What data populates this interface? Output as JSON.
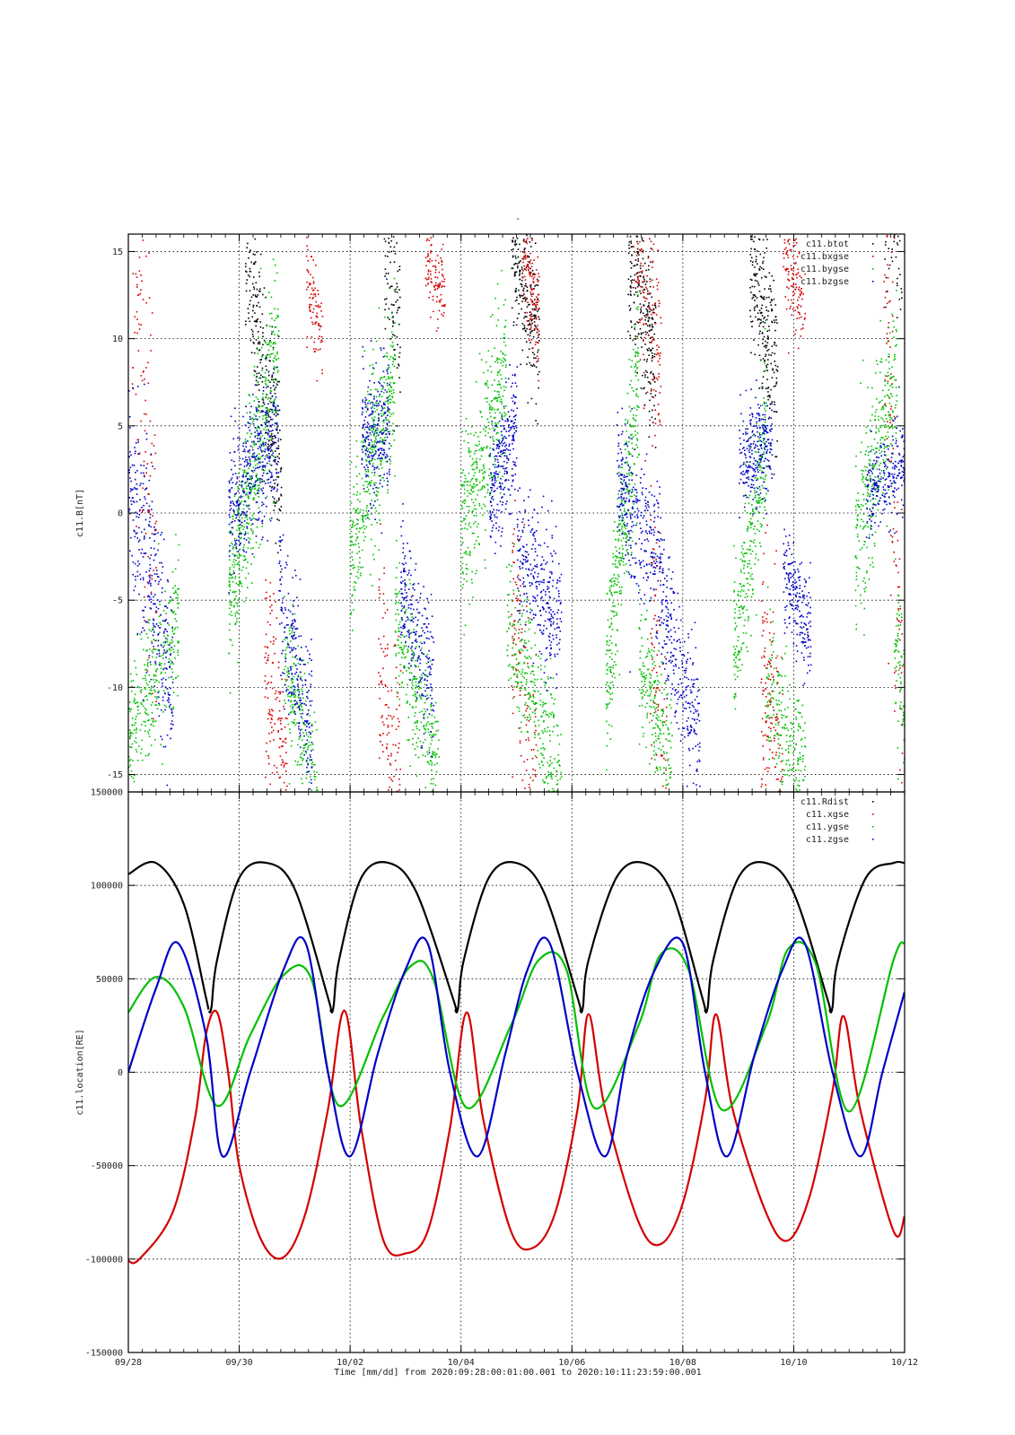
{
  "figure_title": "-",
  "xlabel": "Time [mm/dd]  from 2020:09:28:00:01:00.001  to  2020:10:11:23:59:00.001",
  "colors": {
    "black": "#000000",
    "red": "#d40000",
    "green": "#00c000",
    "blue": "#0000c8"
  },
  "chart_data": [
    {
      "type": "scatter",
      "name": "top_panel",
      "title": "-",
      "ylabel": "c11.B[nT]",
      "xlabel": "",
      "xlim": [
        0,
        14
      ],
      "ylim": [
        -16,
        16
      ],
      "grid": true,
      "legend_position": "top-right",
      "x_tick_labels": [
        "09/28",
        "09/30",
        "10/02",
        "10/04",
        "10/06",
        "10/08",
        "10/10",
        "10/12"
      ],
      "y_ticks": [
        -15,
        -10,
        -5,
        0,
        5,
        10,
        15
      ],
      "y_tick_labels": [
        "-15",
        "-10",
        "-5",
        "0",
        "5",
        "10",
        "15"
      ],
      "series": [
        {
          "name": "c11.btot",
          "color": "#000000",
          "bursts": [
            {
              "x": [
                2.1,
                2.75
              ],
              "y": [
                15,
                2
              ],
              "sd": 2.5,
              "n": 280
            },
            {
              "x": [
                4.6,
                4.9
              ],
              "y": [
                15,
                10
              ],
              "sd": 2.5,
              "n": 90
            },
            {
              "x": [
                6.9,
                7.4
              ],
              "y": [
                15,
                10
              ],
              "sd": 2.0,
              "n": 240
            },
            {
              "x": [
                9.0,
                9.5
              ],
              "y": [
                15,
                9
              ],
              "sd": 2.5,
              "n": 260
            },
            {
              "x": [
                11.2,
                11.7
              ],
              "y": [
                14,
                8
              ],
              "sd": 2.5,
              "n": 240
            },
            {
              "x": [
                13.6,
                13.95
              ],
              "y": [
                15,
                14
              ],
              "sd": 1.5,
              "n": 40
            }
          ]
        },
        {
          "name": "c11.bxgse",
          "color": "#d40000",
          "bursts": [
            {
              "x": [
                0.05,
                0.5
              ],
              "y": [
                15,
                -5
              ],
              "sd": 6.0,
              "n": 120
            },
            {
              "x": [
                2.45,
                2.85
              ],
              "y": [
                -8,
                -16
              ],
              "sd": 3.0,
              "n": 150
            },
            {
              "x": [
                3.2,
                3.5
              ],
              "y": [
                14,
                10
              ],
              "sd": 1.3,
              "n": 90
            },
            {
              "x": [
                4.5,
                4.9
              ],
              "y": [
                -8,
                -16
              ],
              "sd": 3.5,
              "n": 120
            },
            {
              "x": [
                5.35,
                5.7
              ],
              "y": [
                15,
                12
              ],
              "sd": 1.2,
              "n": 110
            },
            {
              "x": [
                6.9,
                7.35
              ],
              "y": [
                -5,
                -16
              ],
              "sd": 4.0,
              "n": 120
            },
            {
              "x": [
                7.1,
                7.4
              ],
              "y": [
                15,
                11
              ],
              "sd": 2.0,
              "n": 140
            },
            {
              "x": [
                9.1,
                9.6
              ],
              "y": [
                15,
                8
              ],
              "sd": 3.0,
              "n": 150
            },
            {
              "x": [
                9.4,
                9.7
              ],
              "y": [
                -5,
                -15
              ],
              "sd": 4.0,
              "n": 80
            },
            {
              "x": [
                11.4,
                11.8
              ],
              "y": [
                -8,
                -16
              ],
              "sd": 4.0,
              "n": 170
            },
            {
              "x": [
                11.8,
                12.2
              ],
              "y": [
                15,
                12
              ],
              "sd": 1.5,
              "n": 120
            },
            {
              "x": [
                13.6,
                13.95
              ],
              "y": [
                14,
                -10
              ],
              "sd": 6.0,
              "n": 110
            }
          ]
        },
        {
          "name": "c11.bygse",
          "color": "#00c000",
          "bursts": [
            {
              "x": [
                0.0,
                0.9
              ],
              "y": [
                -13,
                -6
              ],
              "sd": 2.0,
              "n": 320
            },
            {
              "x": [
                1.8,
                2.7
              ],
              "y": [
                -5,
                10
              ],
              "sd": 2.5,
              "n": 520
            },
            {
              "x": [
                2.8,
                3.4
              ],
              "y": [
                -8,
                -16
              ],
              "sd": 2.0,
              "n": 220
            },
            {
              "x": [
                4.0,
                4.8
              ],
              "y": [
                -2,
                8
              ],
              "sd": 2.5,
              "n": 420
            },
            {
              "x": [
                4.8,
                5.6
              ],
              "y": [
                -6,
                -15
              ],
              "sd": 2.0,
              "n": 300
            },
            {
              "x": [
                6.0,
                6.8
              ],
              "y": [
                -1,
                8
              ],
              "sd": 2.5,
              "n": 400
            },
            {
              "x": [
                6.8,
                7.8
              ],
              "y": [
                -6,
                -15
              ],
              "sd": 2.0,
              "n": 320
            },
            {
              "x": [
                8.6,
                9.2
              ],
              "y": [
                -10,
                8
              ],
              "sd": 2.5,
              "n": 360
            },
            {
              "x": [
                9.2,
                9.8
              ],
              "y": [
                -8,
                -15
              ],
              "sd": 2.0,
              "n": 220
            },
            {
              "x": [
                10.9,
                11.5
              ],
              "y": [
                -8,
                5
              ],
              "sd": 2.5,
              "n": 300
            },
            {
              "x": [
                11.5,
                12.2
              ],
              "y": [
                -10,
                -15
              ],
              "sd": 2.0,
              "n": 220
            },
            {
              "x": [
                13.1,
                13.85
              ],
              "y": [
                -2,
                8
              ],
              "sd": 2.5,
              "n": 320
            },
            {
              "x": [
                13.8,
                14.0
              ],
              "y": [
                -7,
                -11
              ],
              "sd": 2.0,
              "n": 80
            }
          ]
        },
        {
          "name": "c11.bzgse",
          "color": "#0000c8",
          "bursts": [
            {
              "x": [
                0.0,
                0.8
              ],
              "y": [
                2,
                -10
              ],
              "sd": 3.0,
              "n": 320
            },
            {
              "x": [
                1.8,
                2.7
              ],
              "y": [
                0,
                5
              ],
              "sd": 2.0,
              "n": 430
            },
            {
              "x": [
                2.7,
                3.3
              ],
              "y": [
                -5,
                -12
              ],
              "sd": 2.0,
              "n": 240
            },
            {
              "x": [
                4.2,
                4.7
              ],
              "y": [
                4,
                5
              ],
              "sd": 2.0,
              "n": 260
            },
            {
              "x": [
                4.9,
                5.5
              ],
              "y": [
                -4,
                -10
              ],
              "sd": 2.0,
              "n": 240
            },
            {
              "x": [
                6.5,
                7.0
              ],
              "y": [
                1,
                5
              ],
              "sd": 1.8,
              "n": 260
            },
            {
              "x": [
                7.0,
                7.8
              ],
              "y": [
                -2,
                -6
              ],
              "sd": 2.0,
              "n": 300
            },
            {
              "x": [
                8.8,
                9.6
              ],
              "y": [
                2,
                -3
              ],
              "sd": 2.0,
              "n": 320
            },
            {
              "x": [
                9.6,
                10.3
              ],
              "y": [
                -5,
                -13
              ],
              "sd": 2.0,
              "n": 260
            },
            {
              "x": [
                11.0,
                11.6
              ],
              "y": [
                3,
                4
              ],
              "sd": 1.5,
              "n": 260
            },
            {
              "x": [
                11.8,
                12.3
              ],
              "y": [
                -3,
                -7
              ],
              "sd": 1.5,
              "n": 200
            },
            {
              "x": [
                13.3,
                14.0
              ],
              "y": [
                1,
                3
              ],
              "sd": 1.2,
              "n": 240
            }
          ]
        }
      ]
    },
    {
      "type": "line",
      "name": "bottom_panel",
      "ylabel": "c11.location[RE]",
      "xlabel": "",
      "xlim": [
        0,
        14
      ],
      "ylim": [
        -150000,
        150000
      ],
      "grid": true,
      "legend_position": "top-right",
      "x_tick_labels": [
        "09/28",
        "09/30",
        "10/02",
        "10/04",
        "10/06",
        "10/08",
        "10/10",
        "10/12"
      ],
      "y_ticks": [
        -150000,
        -100000,
        -50000,
        0,
        50000,
        100000,
        150000
      ],
      "y_tick_labels": [
        "-150000",
        "-100000",
        "-50000",
        "0",
        "50000",
        "100000",
        "150000"
      ],
      "series": [
        {
          "name": "c11.Rdist",
          "color": "#000000",
          "x": [
            0,
            0.5,
            1.0,
            1.4,
            1.45,
            1.5,
            1.6,
            2.0,
            2.5,
            3.0,
            3.6,
            3.65,
            3.7,
            3.8,
            4.2,
            4.7,
            5.2,
            5.85,
            5.9,
            5.95,
            6.05,
            6.5,
            7.0,
            7.5,
            8.1,
            8.15,
            8.2,
            8.3,
            8.8,
            9.3,
            9.8,
            10.35,
            10.4,
            10.45,
            10.55,
            11.0,
            11.5,
            12.0,
            12.6,
            12.65,
            12.7,
            12.8,
            13.3,
            13.8,
            14.0
          ],
          "y": [
            106000,
            112000,
            90000,
            40000,
            33000,
            35000,
            60000,
            104000,
            112000,
            98000,
            40000,
            33000,
            35000,
            60000,
            104000,
            112000,
            96000,
            40000,
            33000,
            35000,
            60000,
            104000,
            112000,
            96000,
            40000,
            33000,
            35000,
            60000,
            104000,
            112000,
            96000,
            40000,
            33000,
            35000,
            60000,
            104000,
            112000,
            96000,
            40000,
            33000,
            35000,
            60000,
            104000,
            112000,
            112000
          ]
        },
        {
          "name": "c11.xgse",
          "color": "#d40000",
          "x": [
            0,
            0.2,
            0.8,
            1.2,
            1.4,
            1.6,
            1.8,
            2.0,
            2.4,
            2.8,
            3.2,
            3.6,
            3.9,
            4.2,
            4.6,
            5.0,
            5.4,
            5.8,
            6.1,
            6.4,
            6.9,
            7.3,
            7.7,
            8.1,
            8.3,
            8.6,
            9.2,
            9.6,
            10.0,
            10.4,
            10.6,
            10.9,
            11.5,
            11.9,
            12.3,
            12.7,
            12.9,
            13.2,
            13.8,
            14.0
          ],
          "y": [
            -101000,
            -100000,
            -75000,
            -25000,
            20000,
            32000,
            0,
            -50000,
            -90000,
            -99000,
            -75000,
            -20000,
            33000,
            -30000,
            -90000,
            -97000,
            -85000,
            -30000,
            32000,
            -25000,
            -85000,
            -94000,
            -75000,
            -20000,
            31000,
            -20000,
            -80000,
            -92000,
            -70000,
            -15000,
            31000,
            -20000,
            -75000,
            -90000,
            -65000,
            -10000,
            30000,
            -20000,
            -85000,
            -77000
          ]
        },
        {
          "name": "c11.ygse",
          "color": "#00c000",
          "x": [
            0,
            0.5,
            1.0,
            1.6,
            2.2,
            2.8,
            3.3,
            3.8,
            4.6,
            5.1,
            5.5,
            6.1,
            6.9,
            7.4,
            7.9,
            8.4,
            9.2,
            9.6,
            10.1,
            10.7,
            11.5,
            11.9,
            12.4,
            13.0,
            13.8,
            14.0
          ],
          "y": [
            32000,
            51000,
            35000,
            -18000,
            20000,
            52000,
            50000,
            -18000,
            30000,
            57000,
            50000,
            -19000,
            25000,
            60000,
            55000,
            -19000,
            25000,
            63000,
            55000,
            -20000,
            25000,
            66000,
            58000,
            -21000,
            60000,
            69000
          ]
        },
        {
          "name": "c11.zgse",
          "color": "#0000c8",
          "x": [
            0,
            0.5,
            0.9,
            1.4,
            1.7,
            2.2,
            2.8,
            3.2,
            3.6,
            4.0,
            4.5,
            5.0,
            5.4,
            5.8,
            6.3,
            6.8,
            7.2,
            7.6,
            8.1,
            8.6,
            9.0,
            9.5,
            10.0,
            10.4,
            10.8,
            11.3,
            11.8,
            12.2,
            12.7,
            13.2,
            13.6,
            14.0
          ],
          "y": [
            0,
            45000,
            69000,
            20000,
            -45000,
            0,
            55000,
            69000,
            0,
            -45000,
            10000,
            55000,
            69000,
            0,
            -45000,
            10000,
            55000,
            69000,
            0,
            -45000,
            10000,
            55000,
            69000,
            0,
            -45000,
            10000,
            55000,
            69000,
            0,
            -45000,
            0,
            43000
          ]
        }
      ]
    }
  ]
}
